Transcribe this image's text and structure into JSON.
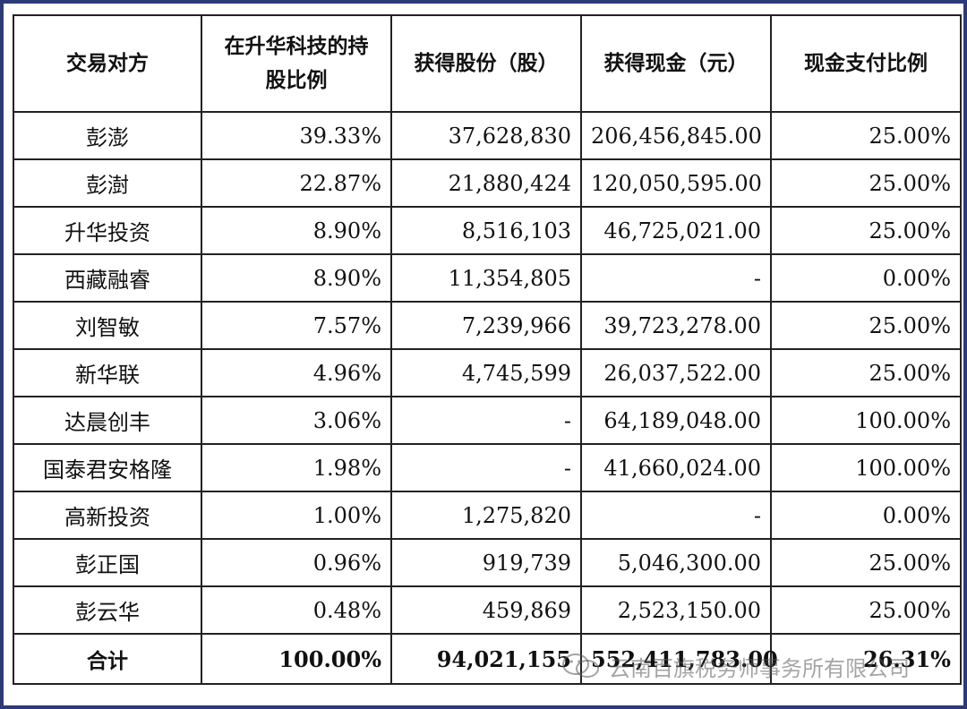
{
  "table": {
    "headers": [
      "交易对方",
      "在升华科技的持股比例",
      "获得股份（股）",
      "获得现金（元）",
      "现金支付比例"
    ],
    "rows": [
      {
        "name": "彭澎",
        "ratio": "39.33%",
        "shares": "37,628,830",
        "cash": "206,456,845.00",
        "cash_ratio": "25.00%"
      },
      {
        "name": "彭澍",
        "ratio": "22.87%",
        "shares": "21,880,424",
        "cash": "120,050,595.00",
        "cash_ratio": "25.00%"
      },
      {
        "name": "升华投资",
        "ratio": "8.90%",
        "shares": "8,516,103",
        "cash": "46,725,021.00",
        "cash_ratio": "25.00%"
      },
      {
        "name": "西藏融睿",
        "ratio": "8.90%",
        "shares": "11,354,805",
        "cash": "-",
        "cash_ratio": "0.00%"
      },
      {
        "name": "刘智敏",
        "ratio": "7.57%",
        "shares": "7,239,966",
        "cash": "39,723,278.00",
        "cash_ratio": "25.00%"
      },
      {
        "name": "新华联",
        "ratio": "4.96%",
        "shares": "4,745,599",
        "cash": "26,037,522.00",
        "cash_ratio": "25.00%"
      },
      {
        "name": "达晨创丰",
        "ratio": "3.06%",
        "shares": "-",
        "cash": "64,189,048.00",
        "cash_ratio": "100.00%"
      },
      {
        "name": "国泰君安格隆",
        "ratio": "1.98%",
        "shares": "-",
        "cash": "41,660,024.00",
        "cash_ratio": "100.00%"
      },
      {
        "name": "高新投资",
        "ratio": "1.00%",
        "shares": "1,275,820",
        "cash": "-",
        "cash_ratio": "0.00%"
      },
      {
        "name": "彭正国",
        "ratio": "0.96%",
        "shares": "919,739",
        "cash": "5,046,300.00",
        "cash_ratio": "25.00%"
      },
      {
        "name": "彭云华",
        "ratio": "0.48%",
        "shares": "459,869",
        "cash": "2,523,150.00",
        "cash_ratio": "25.00%"
      }
    ],
    "total": {
      "name": "合计",
      "ratio": "100.00%",
      "shares": "94,021,155",
      "cash": "552,411,783.00",
      "cash_ratio": "26.31%"
    }
  },
  "watermark": {
    "text": "云南百旗税务师事务所有限公司",
    "icon": "wechat-icon"
  },
  "colors": {
    "frame_border": "#2d3a78",
    "grid": "#222222"
  }
}
